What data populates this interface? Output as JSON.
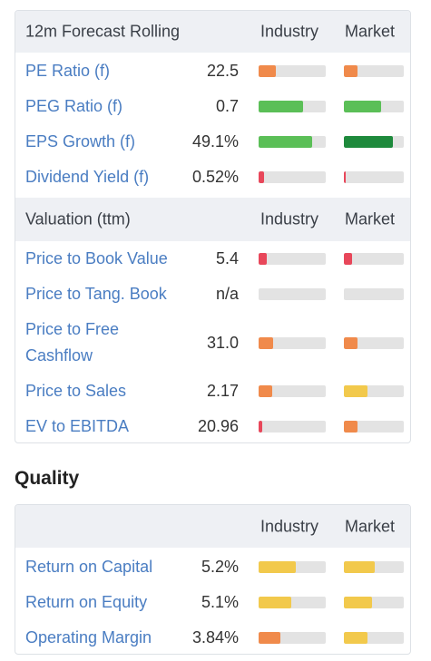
{
  "forecast": {
    "title": "12m Forecast Rolling",
    "col_industry": "Industry",
    "col_market": "Market",
    "rows": [
      {
        "label": "PE Ratio (f)",
        "value": "22.5",
        "industry": {
          "fill": 0.25,
          "color": "#f08a4b"
        },
        "market": {
          "fill": 0.22,
          "color": "#f08a4b"
        }
      },
      {
        "label": "PEG Ratio (f)",
        "value": "0.7",
        "industry": {
          "fill": 0.66,
          "color": "#5bbf57"
        },
        "market": {
          "fill": 0.62,
          "color": "#5bbf57"
        }
      },
      {
        "label": "EPS Growth (f)",
        "value": "49.1%",
        "industry": {
          "fill": 0.8,
          "color": "#5bbf57"
        },
        "market": {
          "fill": 0.82,
          "color": "#1e8a3c"
        }
      },
      {
        "label": "Dividend Yield (f)",
        "value": "0.52%",
        "industry": {
          "fill": 0.08,
          "color": "#e8475a"
        },
        "market": {
          "fill": 0.03,
          "color": "#e8475a"
        }
      }
    ]
  },
  "valuation": {
    "title": "Valuation (ttm)",
    "col_industry": "Industry",
    "col_market": "Market",
    "rows": [
      {
        "label": "Price to Book Value",
        "value": "5.4",
        "industry": {
          "fill": 0.12,
          "color": "#e8475a"
        },
        "market": {
          "fill": 0.13,
          "color": "#e8475a"
        }
      },
      {
        "label": "Price to Tang. Book",
        "value": "n/a",
        "industry": {
          "fill": 0,
          "color": "#e3e3e3"
        },
        "market": {
          "fill": 0,
          "color": "#e3e3e3"
        }
      },
      {
        "label_line1": "Price to Free",
        "label_line2": "Cashflow",
        "value": "31.0",
        "industry": {
          "fill": 0.22,
          "color": "#f08a4b"
        },
        "market": {
          "fill": 0.23,
          "color": "#f08a4b"
        }
      },
      {
        "label": "Price to Sales",
        "value": "2.17",
        "industry": {
          "fill": 0.2,
          "color": "#f08a4b"
        },
        "market": {
          "fill": 0.4,
          "color": "#f2c94c"
        }
      },
      {
        "label": "EV to EBITDA",
        "value": "20.96",
        "industry": {
          "fill": 0.06,
          "color": "#e8475a"
        },
        "market": {
          "fill": 0.22,
          "color": "#f08a4b"
        }
      }
    ]
  },
  "quality": {
    "heading": "Quality",
    "col_industry": "Industry",
    "col_market": "Market",
    "rows": [
      {
        "label": "Return on Capital",
        "value": "5.2%",
        "industry": {
          "fill": 0.55,
          "color": "#f2c94c"
        },
        "market": {
          "fill": 0.52,
          "color": "#f2c94c"
        }
      },
      {
        "label": "Return on Equity",
        "value": "5.1%",
        "industry": {
          "fill": 0.48,
          "color": "#f2c94c"
        },
        "market": {
          "fill": 0.47,
          "color": "#f2c94c"
        }
      },
      {
        "label": "Operating Margin",
        "value": "3.84%",
        "industry": {
          "fill": 0.33,
          "color": "#f08a4b"
        },
        "market": {
          "fill": 0.4,
          "color": "#f2c94c"
        }
      }
    ]
  }
}
